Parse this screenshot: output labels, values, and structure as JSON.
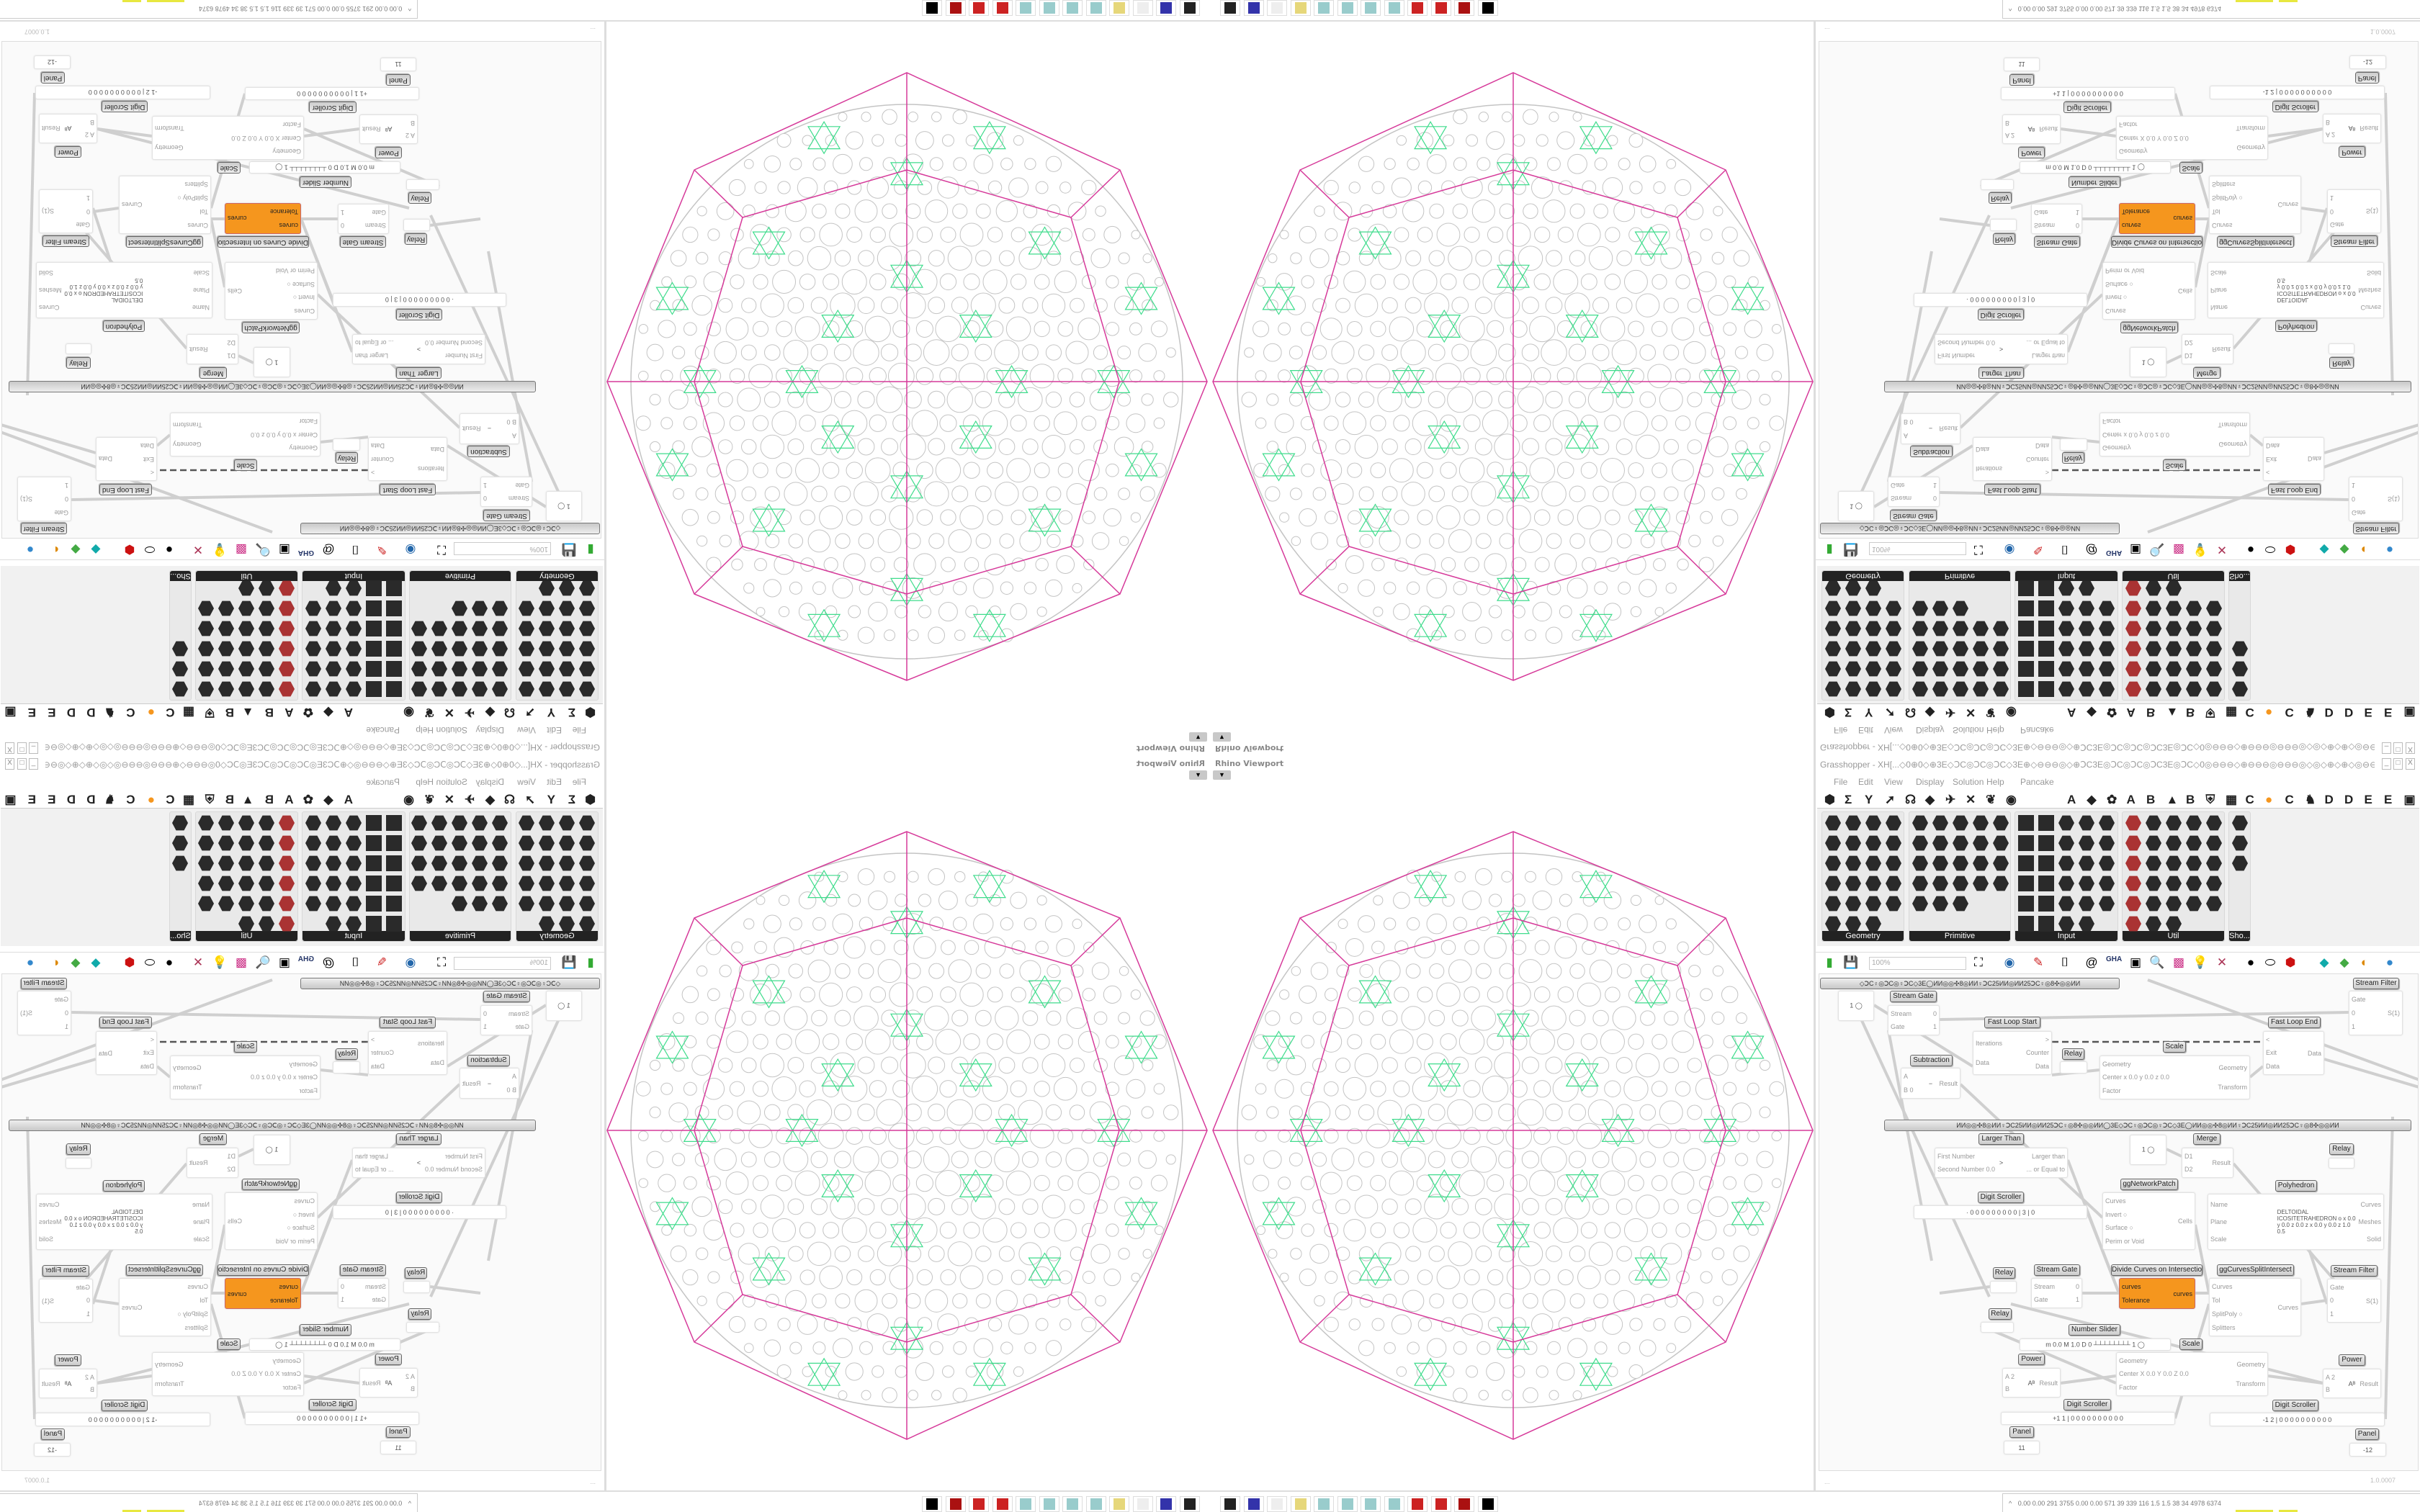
{
  "viewport": {
    "title": "Rhino Viewport",
    "menu_arrow": "▼"
  },
  "taskbar": {
    "icons": [
      "rhino-icon",
      "floppy-64-icon",
      "blank-icon",
      "folder-icon",
      "notepad-icon",
      "notepad-icon",
      "notepad-icon",
      "notepad-icon",
      "red-app-icon",
      "red-app-icon",
      "red-bag-icon",
      "rhino-black-icon"
    ],
    "tray_arrow": "^",
    "tray_text": "0.00 0.00 291 3755 0.00 0.00 571  39  339  116  1.5  1.5  38  34  4978 6374",
    "tray_bar_colors": [
      "#e8e840",
      "#8b4a10",
      "#1a3f8a",
      "#8b4a10",
      "#2fbf40",
      "#c04040"
    ]
  },
  "grasshopper": {
    "title": "Grasshopper - XH[...◇0⊕0◇⊕3E◇ↃC◎ↃC◎ↃC◇3E⊕◇⊖⊖⊖◎◇⊕ↃC3E◎ↃC◎ↃC◎ↃC3E◎ↃC◇0◎⊖⊖⊖◇⊕⊖⊖⊖◎⊖⊖⊖◎◇◎◇⊕◇⊕◇◎⊖⊖⊖◎⊖⊖⊖⊕◇⊖⊖⊖◎◎⊕ↃC3E◎ↃC...",
    "window_buttons": [
      "_",
      "□",
      "X"
    ],
    "menu": [
      "File",
      "Edit",
      "View",
      "Display",
      "Solution",
      "Help",
      "Pancake"
    ],
    "tab_icons": [
      "⬢",
      "Σ",
      "Y",
      "➚",
      "☊",
      "◆",
      "✈",
      "✕",
      "❦",
      "◉"
    ],
    "tab_letters": [
      "A",
      "◆",
      "✿",
      "A",
      "B",
      "▲",
      "B",
      "⛨",
      "▦",
      "C",
      "●",
      "C",
      "♞",
      "D",
      "D",
      "E",
      "E",
      "▣"
    ],
    "accent_orange": "#f5961e",
    "panels": [
      {
        "caption": "Geometry",
        "count": 23
      },
      {
        "caption": "Primitive",
        "count": 23
      },
      {
        "caption": "Input",
        "count": 29
      },
      {
        "caption": "Util",
        "count": 28
      },
      {
        "caption": "Sho..."
      }
    ],
    "toolbar": {
      "zoom": "100%"
    },
    "groups": [
      "◇ↃC♀◎ↃC◎♀ↃC◇3E◯ИИ◎◎✣8◎ИИ♀ↃC25ИИ◎ИИ25ↃC♀◎8✣◎◎ИИ",
      "ИИ◎◎✣8◎ИИ♀ↃC25ИИ◎ИИ25ↃC♀◎8✣◎◎ИИ◯3E◇ↃC♀◎ↃC◎♀ↃC◇3E◯ИИ◎◎✣8◎ИИ♀ↃC25ИИ◎ИИ25ↃC♀◎8✣◎◎ИИ"
    ],
    "components": [
      {
        "label": "",
        "mid": "1 ◯",
        "in": [],
        "out": []
      },
      {
        "label": "Stream Gate",
        "in": [
          "Stream",
          "Gate"
        ],
        "out": [
          "0",
          "1"
        ]
      },
      {
        "label": "Fast Loop Start",
        "in": [
          "Iterations",
          "Data"
        ],
        "out": [
          ">",
          "Counter",
          "Data"
        ]
      },
      {
        "label": "Relay",
        "in": [],
        "out": []
      },
      {
        "label": "Scale",
        "in": [
          "Geometry",
          "Center x 0.0 y 0.0 z 0.0",
          "Factor"
        ],
        "out": [
          "Geometry",
          "Transform"
        ]
      },
      {
        "label": "Fast Loop End",
        "in": [
          "<",
          "Exit",
          "Data"
        ],
        "out": [
          "Data"
        ]
      },
      {
        "label": "Stream Filter",
        "in": [
          "Gate",
          "0",
          "1"
        ],
        "out": [
          "S(1)"
        ]
      },
      {
        "label": "Subtraction",
        "in": [
          "A",
          "B 0"
        ],
        "out": [
          "Result"
        ],
        "mid": "−"
      },
      {
        "label": "Larger Than",
        "in": [
          "First Number",
          "Second Number 0.0"
        ],
        "out": [
          "Larger than",
          "... or Equal to"
        ],
        "mid": ">"
      },
      {
        "label": "",
        "mid": "1 ◯",
        "in": [],
        "out": []
      },
      {
        "label": "Merge",
        "in": [
          "D1",
          "D2"
        ],
        "out": [
          "Result"
        ]
      },
      {
        "label": "Relay",
        "in": [],
        "out": []
      },
      {
        "label": "ggNetworkPatch",
        "in": [
          "Curves",
          "Invert ○",
          "Surface ○",
          "Perim or Void"
        ],
        "out": [
          "Cells"
        ]
      },
      {
        "label": "Polyhedron",
        "in": [
          "Name",
          "Plane",
          "Scale"
        ],
        "out": [
          "Curves",
          "Meshes",
          "Solid"
        ],
        "mid": "DELTOIDAL ICOSITETRAHEDRON  o x 0.0 y 0.0 z 0.0  z x 0.0 y 0.0 z 1.0  0.5"
      },
      {
        "label": "Digit Scroller",
        "in": [],
        "out": [],
        "mid": "· 0 0 0 0 0 0 0 0 0 | 3 | 0"
      },
      {
        "label": "Relay",
        "in": [],
        "out": []
      },
      {
        "label": "Stream Gate",
        "in": [
          "Stream",
          "Gate"
        ],
        "out": [
          "0",
          "1"
        ]
      },
      {
        "label": "Divide Curves on Intersections",
        "in": [
          "curves",
          "Tolerance"
        ],
        "out": [
          "curves"
        ]
      },
      {
        "label": "ggCurvesSplitIntersect",
        "in": [
          "Curves",
          "Tol",
          "SplitPoly ○",
          "Splitters"
        ],
        "out": [
          "Curves"
        ]
      },
      {
        "label": "Stream Filter",
        "in": [
          "Gate",
          "0",
          "1"
        ],
        "out": [
          "S(1)"
        ]
      },
      {
        "label": "Relay",
        "in": [],
        "out": []
      },
      {
        "label": "Number Slider",
        "in": [],
        "out": [],
        "mid": "m 0.0  M 1.0  D 0   ┴┴┴┴┴┴┴┴ 1 ◯"
      },
      {
        "label": "Scale",
        "in": [
          "Geometry",
          "Center X 0.0 Y 0.0 Z 0.0",
          "Factor"
        ],
        "out": [
          "Geometry",
          "Transform"
        ]
      },
      {
        "label": "Power",
        "in": [
          "A 2",
          "B"
        ],
        "out": [
          "Result"
        ],
        "mid": "Aᴮ"
      },
      {
        "label": "Power",
        "in": [
          "A 2",
          "B"
        ],
        "out": [
          "Result"
        ],
        "mid": "Aᴮ"
      },
      {
        "label": "Digit Scroller",
        "in": [],
        "out": [],
        "mid": "+1 1 | 0 0 0 0 0 0 0 0 0 0"
      },
      {
        "label": "Digit Scroller",
        "in": [],
        "out": [],
        "mid": "-1 2 | 0 0 0 0 0 0 0 0 0 0"
      },
      {
        "label": "Panel",
        "in": [],
        "out": [],
        "mid": "11"
      },
      {
        "label": "Panel",
        "in": [],
        "out": [],
        "mid": "-12"
      }
    ],
    "status": {
      "left": "...",
      "version": "1.0.0007"
    }
  },
  "colors": {
    "polyhedron_edges": "#d63a9a",
    "circles": "#c4c4c4",
    "network": "#3fdc8c"
  }
}
